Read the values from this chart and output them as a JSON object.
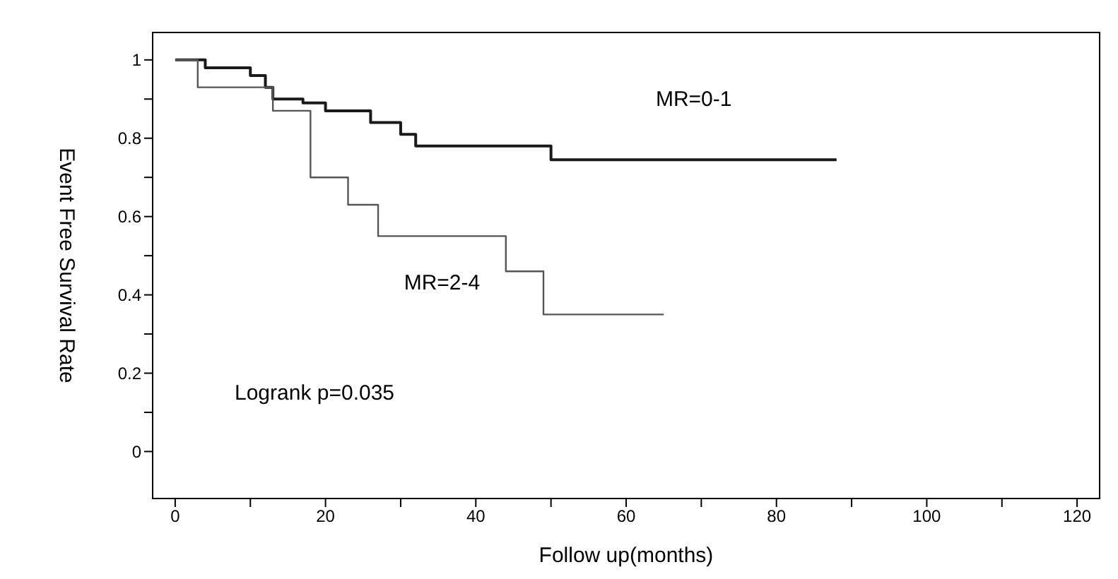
{
  "chart_data": {
    "type": "step",
    "xlabel": "Follow up(months)",
    "ylabel": "Event Free Survival Rate",
    "annotations": [
      "Logrank p=0.035"
    ],
    "xlim": [
      -3,
      123
    ],
    "ylim": [
      -0.12,
      1.07
    ],
    "xticks": [
      0,
      {
        "value": 10,
        "label": null
      },
      20,
      {
        "value": 30,
        "label": null
      },
      40,
      {
        "value": 50,
        "label": null
      },
      60,
      {
        "value": 70,
        "label": null
      },
      80,
      {
        "value": 90,
        "label": null
      },
      100,
      {
        "value": 110,
        "label": null
      },
      120
    ],
    "yticks": [
      0,
      {
        "value": 0.1,
        "label": null
      },
      0.2,
      {
        "value": 0.3,
        "label": null
      },
      0.4,
      {
        "value": 0.5,
        "label": null
      },
      0.6,
      {
        "value": 0.7,
        "label": null
      },
      0.8,
      {
        "value": 0.9,
        "label": null
      },
      1
    ],
    "grid": false,
    "legend": false,
    "marker": "none",
    "line_style": "solid",
    "series": [
      {
        "name": "MR=0-1",
        "color": "#1a1a1a",
        "x": [
          0,
          4,
          10,
          12,
          13,
          17,
          20,
          26,
          30,
          32,
          50,
          88
        ],
        "values": [
          1,
          0.98,
          0.96,
          0.93,
          0.9,
          0.89,
          0.87,
          0.84,
          0.81,
          0.78,
          0.745,
          0.745
        ]
      },
      {
        "name": "MR=2-4",
        "color": "#555555",
        "x": [
          0,
          3,
          13,
          18,
          23,
          27,
          44,
          49,
          65
        ],
        "values": [
          1,
          0.93,
          0.87,
          0.7,
          0.63,
          0.55,
          0.46,
          0.35,
          0.35
        ]
      }
    ]
  }
}
